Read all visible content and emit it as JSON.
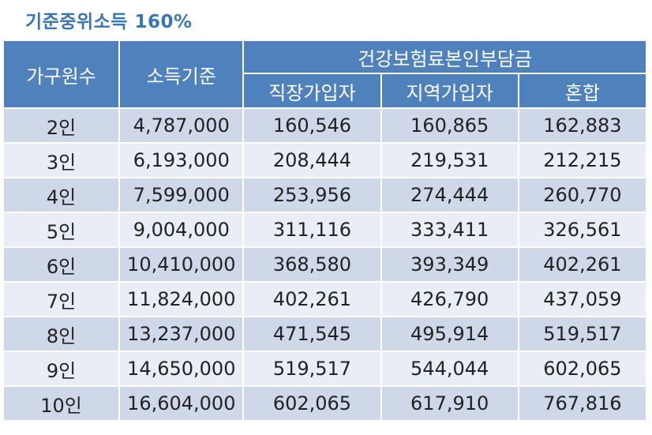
{
  "title": "기준중위소득 160%",
  "header": {
    "household_size": "가구원수",
    "income_standard": "소득기준",
    "premium_group": "건강보험료본인부담금",
    "employee": "직장가입자",
    "regional": "지역가입자",
    "mixed": "혼합"
  },
  "rows": [
    {
      "size": "2인",
      "income": "4,787,000",
      "employee": "160,546",
      "regional": "160,865",
      "mixed": "162,883"
    },
    {
      "size": "3인",
      "income": "6,193,000",
      "employee": "208,444",
      "regional": "219,531",
      "mixed": "212,215"
    },
    {
      "size": "4인",
      "income": "7,599,000",
      "employee": "253,956",
      "regional": "274,444",
      "mixed": "260,770"
    },
    {
      "size": "5인",
      "income": "9,004,000",
      "employee": "311,116",
      "regional": "333,411",
      "mixed": "326,561"
    },
    {
      "size": "6인",
      "income": "10,410,000",
      "employee": "368,580",
      "regional": "393,349",
      "mixed": "402,261"
    },
    {
      "size": "7인",
      "income": "11,824,000",
      "employee": "402,261",
      "regional": "426,790",
      "mixed": "437,059"
    },
    {
      "size": "8인",
      "income": "13,237,000",
      "employee": "471,545",
      "regional": "495,914",
      "mixed": "519,517"
    },
    {
      "size": "9인",
      "income": "14,650,000",
      "employee": "519,517",
      "regional": "544,044",
      "mixed": "602,065"
    },
    {
      "size": "10인",
      "income": "16,604,000",
      "employee": "602,065",
      "regional": "617,910",
      "mixed": "767,816"
    }
  ],
  "colors": {
    "title": "#3a76b3",
    "header_bg": "#4f81bd",
    "header_text": "#ffffff",
    "row_odd": "#cfd8e9",
    "row_even": "#e9edf5"
  }
}
